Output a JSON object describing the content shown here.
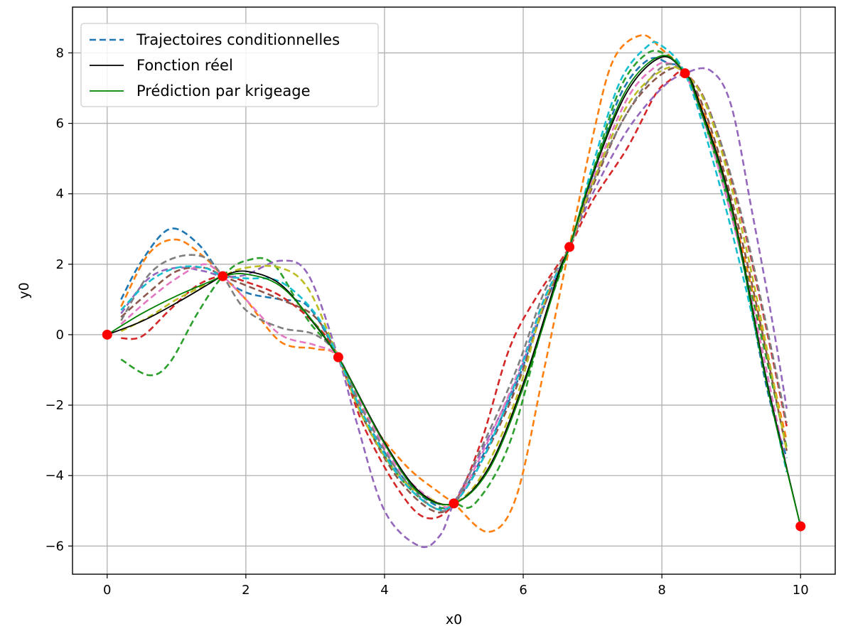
{
  "chart_data": {
    "type": "line",
    "title": "",
    "xlabel": "x0",
    "ylabel": "y0",
    "xlim": [
      -0.5,
      10.5
    ],
    "ylim": [
      -6.8,
      9.3
    ],
    "xticks": [
      0,
      2,
      4,
      6,
      8,
      10
    ],
    "yticks": [
      -6,
      -4,
      -2,
      0,
      2,
      4,
      6,
      8
    ],
    "xtick_labels": [
      "0",
      "2",
      "4",
      "6",
      "8",
      "10"
    ],
    "ytick_labels": [
      "−6",
      "−4",
      "−2",
      "0",
      "2",
      "4",
      "6",
      "8"
    ],
    "grid": true,
    "legend_position": "top-left",
    "legend": [
      {
        "label": "Trajectoires conditionnelles",
        "color": "#1f77b4",
        "style": "dashed"
      },
      {
        "label": "Fonction réel",
        "color": "#000000",
        "style": "solid"
      },
      {
        "label": "Prédiction par krigeage",
        "color": "#008000",
        "style": "solid"
      }
    ],
    "observations": {
      "color": "#ff0000",
      "x": [
        0,
        1.667,
        3.333,
        5.0,
        6.667,
        8.333,
        10.0
      ],
      "y": [
        0,
        1.66,
        -0.64,
        -4.79,
        2.49,
        7.42,
        -5.44
      ]
    },
    "true_function": {
      "color": "#000000",
      "x": [
        0,
        0.5,
        1.0,
        1.5,
        1.667,
        2.0,
        2.5,
        3.0,
        3.333,
        3.5,
        4.0,
        4.5,
        5.0,
        5.5,
        6.0,
        6.5,
        6.667,
        7.0,
        7.5,
        8.0,
        8.333,
        8.5,
        9.0,
        9.5,
        10.0
      ],
      "y": [
        0,
        0.38,
        0.9,
        1.48,
        1.66,
        1.8,
        1.43,
        0.27,
        -0.64,
        -1.23,
        -3.06,
        -4.45,
        -4.79,
        -3.78,
        -1.4,
        1.7,
        2.49,
        4.53,
        6.9,
        7.88,
        7.42,
        6.8,
        3.7,
        -1.2,
        -5.44
      ]
    },
    "kriging_prediction": {
      "color": "#008000",
      "x": [
        0,
        0.5,
        1.0,
        1.5,
        1.667,
        2.0,
        2.5,
        3.0,
        3.333,
        3.5,
        4.0,
        4.5,
        5.0,
        5.5,
        6.0,
        6.5,
        6.667,
        7.0,
        7.5,
        8.0,
        8.333,
        8.5,
        9.0,
        9.5,
        10.0
      ],
      "y": [
        0,
        0.6,
        1.1,
        1.52,
        1.66,
        1.72,
        1.38,
        0.3,
        -0.64,
        -1.25,
        -3.1,
        -4.5,
        -4.79,
        -3.85,
        -1.5,
        1.6,
        2.49,
        4.6,
        7.0,
        7.92,
        7.42,
        6.7,
        3.6,
        -1.3,
        -5.44
      ]
    },
    "series": [
      {
        "color": "#1f77b4",
        "x": [
          0.2,
          0.5,
          0.9,
          1.3,
          1.667,
          2.0,
          2.5,
          2.9,
          3.333,
          3.7,
          4.2,
          4.7,
          5.0,
          5.4,
          5.9,
          6.3,
          6.667,
          7.0,
          7.4,
          7.8,
          8.1,
          8.333,
          8.7,
          9.1,
          9.5,
          9.8
        ],
        "y": [
          1.0,
          2.1,
          3.0,
          2.6,
          1.66,
          1.2,
          1.0,
          0.8,
          -0.64,
          -2.3,
          -3.9,
          -4.8,
          -4.79,
          -3.5,
          -1.4,
          0.8,
          2.49,
          4.5,
          6.8,
          7.8,
          7.7,
          7.42,
          5.6,
          2.7,
          -1.4,
          -3.5
        ]
      },
      {
        "color": "#ff7f0e",
        "x": [
          0.2,
          0.6,
          1.0,
          1.4,
          1.667,
          2.0,
          2.5,
          3.0,
          3.333,
          3.7,
          4.3,
          4.8,
          5.0,
          5.5,
          5.9,
          6.3,
          6.667,
          7.0,
          7.3,
          7.7,
          8.0,
          8.333,
          8.7,
          9.2,
          9.8
        ],
        "y": [
          0.8,
          2.3,
          2.7,
          2.2,
          1.66,
          1.0,
          -0.2,
          -0.4,
          -0.64,
          -2.2,
          -3.7,
          -4.5,
          -4.79,
          -5.6,
          -4.6,
          -1.0,
          2.49,
          5.6,
          7.8,
          8.5,
          8.1,
          7.42,
          5.8,
          2.1,
          -3.0
        ]
      },
      {
        "color": "#2ca02c",
        "x": [
          0.2,
          0.6,
          0.9,
          1.3,
          1.667,
          2.0,
          2.4,
          2.9,
          3.333,
          3.7,
          4.2,
          4.7,
          5.0,
          5.3,
          5.8,
          6.3,
          6.667,
          7.0,
          7.4,
          7.8,
          8.1,
          8.333,
          8.7,
          9.2,
          9.8
        ],
        "y": [
          -0.7,
          -1.15,
          -0.8,
          0.6,
          1.66,
          2.1,
          2.0,
          0.4,
          -0.64,
          -2.4,
          -4.0,
          -4.9,
          -4.79,
          -4.8,
          -3.1,
          0.4,
          2.49,
          4.6,
          7.0,
          8.0,
          7.9,
          7.42,
          5.5,
          1.9,
          -3.2
        ]
      },
      {
        "color": "#d62728",
        "x": [
          0.2,
          0.5,
          0.9,
          1.3,
          1.667,
          2.0,
          2.5,
          3.0,
          3.333,
          3.7,
          4.2,
          4.6,
          5.0,
          5.4,
          5.8,
          6.2,
          6.667,
          7.0,
          7.5,
          7.9,
          8.1,
          8.333,
          8.7,
          9.2,
          9.8
        ],
        "y": [
          -0.1,
          -0.05,
          0.7,
          1.4,
          1.66,
          1.5,
          1.1,
          0.3,
          -0.64,
          -2.6,
          -4.4,
          -5.2,
          -4.79,
          -3.0,
          -0.4,
          1.1,
          2.49,
          3.8,
          5.3,
          6.8,
          7.2,
          7.42,
          6.3,
          2.9,
          -2.6
        ]
      },
      {
        "color": "#9467bd",
        "x": [
          0.2,
          0.6,
          1.0,
          1.4,
          1.667,
          2.0,
          2.5,
          2.9,
          3.333,
          3.6,
          4.0,
          4.5,
          4.8,
          5.0,
          5.4,
          5.9,
          6.3,
          6.667,
          7.0,
          7.5,
          8.0,
          8.333,
          8.7,
          9.0,
          9.3,
          9.6,
          9.8
        ],
        "y": [
          0.6,
          1.6,
          1.9,
          1.8,
          1.66,
          1.7,
          2.1,
          1.7,
          -0.64,
          -2.5,
          -5.0,
          -6.0,
          -5.7,
          -4.79,
          -3.3,
          -1.3,
          0.9,
          2.49,
          4.0,
          5.8,
          7.0,
          7.42,
          7.5,
          6.5,
          3.5,
          0.3,
          -2.1
        ]
      },
      {
        "color": "#8c564b",
        "x": [
          0.2,
          0.6,
          1.0,
          1.4,
          1.667,
          2.0,
          2.5,
          3.0,
          3.333,
          3.7,
          4.2,
          4.7,
          5.0,
          5.4,
          5.9,
          6.3,
          6.667,
          7.0,
          7.5,
          8.0,
          8.333,
          8.7,
          9.2,
          9.8
        ],
        "y": [
          0.5,
          1.2,
          1.8,
          1.9,
          1.66,
          1.4,
          1.0,
          0.5,
          -0.64,
          -2.4,
          -4.1,
          -5.0,
          -4.79,
          -3.6,
          -1.5,
          0.8,
          2.49,
          4.2,
          6.3,
          7.4,
          7.42,
          5.9,
          2.3,
          -3.3
        ]
      },
      {
        "color": "#e377c2",
        "x": [
          0.2,
          0.6,
          1.0,
          1.4,
          1.667,
          2.0,
          2.5,
          3.0,
          3.333,
          3.7,
          4.2,
          4.7,
          5.0,
          5.4,
          5.9,
          6.3,
          6.667,
          7.0,
          7.5,
          7.9,
          8.1,
          8.333,
          8.7,
          9.2,
          9.8
        ],
        "y": [
          0.3,
          1.0,
          1.6,
          2.0,
          1.66,
          1.0,
          0.0,
          -0.3,
          -0.64,
          -2.1,
          -3.8,
          -4.7,
          -4.79,
          -3.4,
          -1.2,
          1.0,
          2.49,
          4.4,
          6.7,
          7.6,
          7.7,
          7.42,
          5.5,
          1.8,
          -3.8
        ]
      },
      {
        "color": "#7f7f7f",
        "x": [
          0.2,
          0.6,
          1.0,
          1.4,
          1.667,
          2.0,
          2.5,
          3.0,
          3.333,
          3.7,
          4.2,
          4.7,
          5.0,
          5.4,
          5.9,
          6.3,
          6.667,
          7.0,
          7.5,
          8.0,
          8.333,
          8.7,
          9.2,
          9.8
        ],
        "y": [
          0.4,
          1.7,
          2.2,
          2.2,
          1.66,
          0.7,
          0.2,
          0.0,
          -0.64,
          -2.2,
          -3.9,
          -4.9,
          -4.79,
          -3.2,
          -1.0,
          1.2,
          2.49,
          4.3,
          6.3,
          7.6,
          7.42,
          6.3,
          3.0,
          -2.5
        ]
      },
      {
        "color": "#bcbd22",
        "x": [
          0.2,
          0.6,
          1.0,
          1.4,
          1.667,
          2.0,
          2.5,
          2.9,
          3.333,
          3.7,
          4.2,
          4.7,
          5.0,
          5.4,
          5.9,
          6.3,
          6.667,
          7.0,
          7.5,
          8.0,
          8.333,
          8.7,
          9.2,
          9.8
        ],
        "y": [
          0.1,
          0.5,
          1.0,
          1.4,
          1.66,
          1.9,
          1.9,
          1.3,
          -0.64,
          -2.4,
          -4.0,
          -4.7,
          -4.79,
          -4.0,
          -1.8,
          0.9,
          2.49,
          4.3,
          6.5,
          7.5,
          7.42,
          6.2,
          2.6,
          -3.3
        ]
      },
      {
        "color": "#17becf",
        "x": [
          0.2,
          0.6,
          1.0,
          1.4,
          1.667,
          2.0,
          2.5,
          3.0,
          3.333,
          3.7,
          4.2,
          4.7,
          5.0,
          5.4,
          5.9,
          6.3,
          6.667,
          7.0,
          7.4,
          7.8,
          8.0,
          8.333,
          8.7,
          9.2,
          9.8
        ],
        "y": [
          0.7,
          1.5,
          1.9,
          1.9,
          1.66,
          1.6,
          1.5,
          0.6,
          -0.64,
          -2.3,
          -4.0,
          -4.9,
          -4.79,
          -3.6,
          -1.3,
          1.0,
          2.49,
          4.8,
          7.2,
          8.2,
          8.2,
          7.42,
          5.2,
          1.4,
          -3.9
        ]
      }
    ]
  }
}
